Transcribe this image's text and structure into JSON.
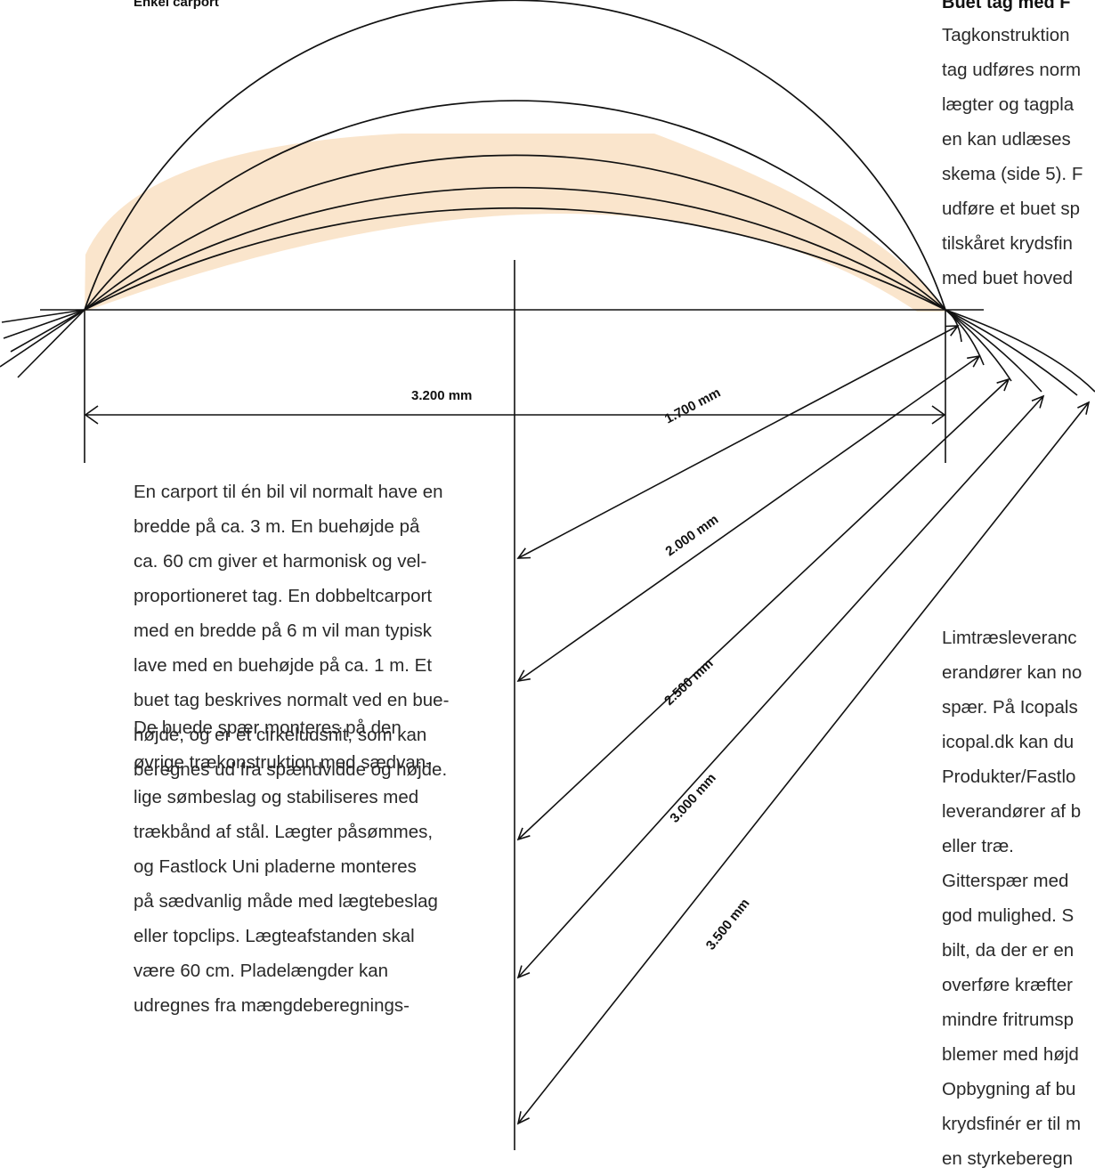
{
  "headings": {
    "left": "Enkel carport",
    "right": "Buet tag med F"
  },
  "dimensions": {
    "span": "3.200 mm",
    "radii": [
      "1.700 mm",
      "2.000 mm",
      "2.500 mm",
      "3.000 mm",
      "3.500 mm"
    ]
  },
  "paragraphs": {
    "right_top": [
      "Tagkonstruktion",
      "tag udføres norm",
      "lægter og tagpla",
      "en kan udlæses",
      "skema (side 5). F",
      "udføre et buet sp",
      "tilskåret krydsfin",
      "med buet hoved"
    ],
    "left_1": [
      "En carport til én bil vil normalt have en",
      "bredde på ca. 3 m. En buehøjde på",
      "ca. 60 cm giver et harmonisk og vel-",
      "proportioneret tag. En dobbeltcarport",
      "med en bredde på 6 m vil man typisk",
      "lave med en buehøjde på ca. 1 m. Et",
      "buet tag beskrives normalt ved en bue-",
      "højde, og er et cirkeludsnit, som kan",
      "beregnes ud fra spændvidde og højde."
    ],
    "left_2": [
      "De buede spær monteres på den",
      "øvrige trækonstruktion med sædvan-",
      "lige sømbeslag og stabiliseres med",
      "trækbånd af stål. Lægter påsømmes,",
      "og Fastlock Uni pladerne monteres",
      "på sædvanlig måde med lægtebeslag",
      "eller topclips. Lægteafstanden skal",
      "være 60 cm. Pladelængder kan",
      "udregnes fra mængdeberegnings-"
    ],
    "right_bottom": [
      "Limtræsleveranc",
      "erandører kan no",
      "spær. På Icopals",
      "icopal.dk kan du",
      "Produkter/Fastlo",
      "leverandører af b",
      "eller træ.",
      "Gitterspær med",
      "god mulighed. S",
      "bilt, da der er en",
      "overføre kræfter",
      "mindre fritrumsp",
      "blemer med højd",
      "Opbygning af bu",
      "krydsfinér er til m",
      "en styrkeberegn"
    ]
  },
  "colors": {
    "line": "#111111",
    "highlight": "#f9e2c6",
    "text": "#2b2b2b"
  }
}
